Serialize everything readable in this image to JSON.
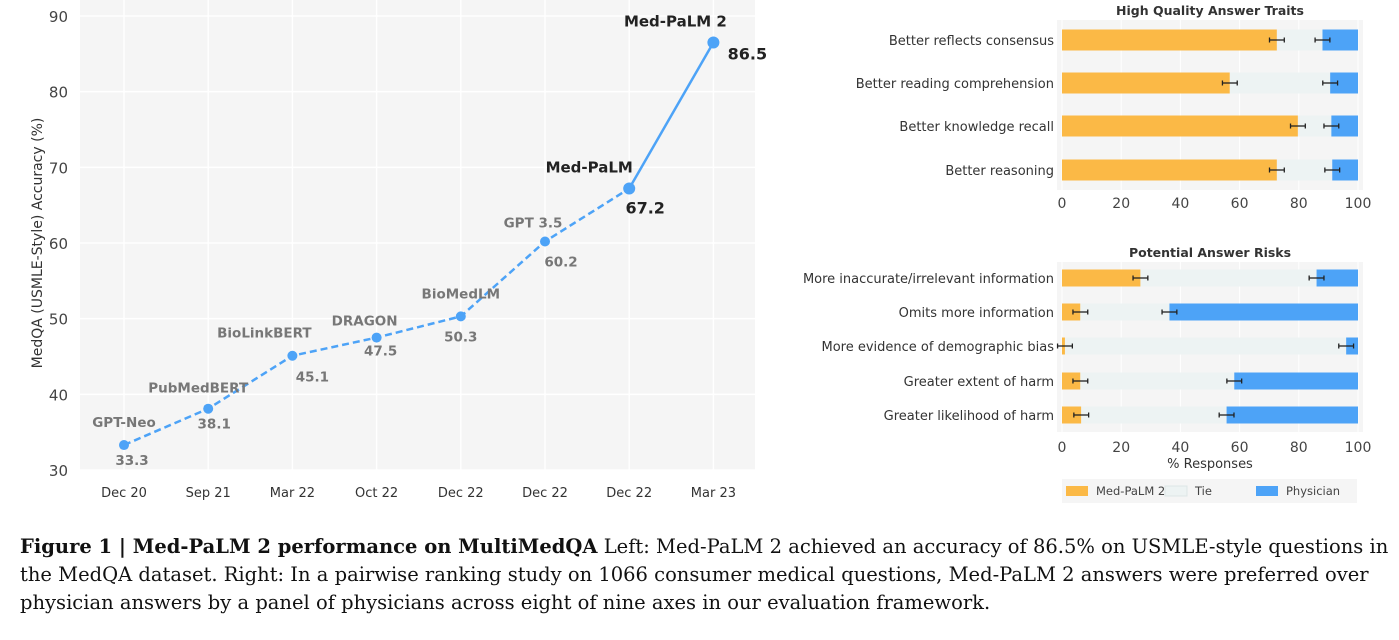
{
  "chart_data": [
    {
      "type": "line",
      "ylabel": "MedQA (USMLE-Style) Accuracy (%)",
      "ylim": [
        30,
        90
      ],
      "yticks": [
        30,
        40,
        50,
        60,
        70,
        80,
        90
      ],
      "grid": true,
      "categories": [
        "Dec 20",
        "Sep 21",
        "Mar 22",
        "Oct 22",
        "Dec 22",
        "Dec 22",
        "Dec 22",
        "Mar 23"
      ],
      "models": [
        "GPT-Neo",
        "PubMedBERT",
        "BioLinkBERT",
        "DRAGON",
        "BioMedLM",
        "GPT 3.5",
        "Med-PaLM",
        "Med-PaLM 2"
      ],
      "values": [
        33.3,
        38.1,
        45.1,
        47.5,
        50.3,
        60.2,
        67.2,
        86.5
      ],
      "value_labels": [
        "33.3",
        "38.1",
        "45.1",
        "47.5",
        "50.3",
        "60.2",
        "67.2",
        "86.5"
      ],
      "highlighted": [
        "Med-PaLM",
        "Med-PaLM 2"
      ],
      "line_color": "#4da3f7"
    },
    {
      "type": "bar",
      "orientation": "horizontal",
      "stacked": true,
      "title": "High Quality Answer Traits",
      "categories": [
        "Better reflects consensus",
        "Better reading comprehension",
        "Better knowledge recall",
        "Better reasoning"
      ],
      "series": [
        {
          "name": "Med-PaLM 2",
          "color": "#fbb946",
          "values": [
            72.6,
            56.7,
            79.7,
            72.6
          ]
        },
        {
          "name": "Tie",
          "color": "#edf3f3",
          "values": [
            15.4,
            33.9,
            11.3,
            18.7
          ]
        },
        {
          "name": "Physician",
          "color": "#4da3f7",
          "values": [
            12.0,
            9.4,
            9.0,
            8.7
          ]
        }
      ],
      "error_half_width": 2.5,
      "xlim": [
        0,
        100
      ],
      "xticks": [
        0,
        20,
        40,
        60,
        80,
        100
      ],
      "xlabel": ""
    },
    {
      "type": "bar",
      "orientation": "horizontal",
      "stacked": true,
      "title": "Potential Answer Risks",
      "categories": [
        "More inaccurate/irrelevant information",
        "Omits more information",
        "More evidence of demographic bias",
        "Greater extent of harm",
        "Greater likelihood of harm"
      ],
      "series": [
        {
          "name": "Med-PaLM 2",
          "color": "#fbb946",
          "values": [
            26.5,
            6.2,
            1.0,
            6.2,
            6.5
          ]
        },
        {
          "name": "Tie",
          "color": "#edf3f3",
          "values": [
            59.5,
            30.1,
            95.0,
            52.0,
            49.1
          ]
        },
        {
          "name": "Physician",
          "color": "#4da3f7",
          "values": [
            14.0,
            63.7,
            4.0,
            41.8,
            44.4
          ]
        }
      ],
      "error_half_width": 2.5,
      "xlim": [
        0,
        100
      ],
      "xticks": [
        0,
        20,
        40,
        60,
        80,
        100
      ],
      "xlabel": "% Responses",
      "legend": {
        "placement": "bottom",
        "entries": [
          "Med-PaLM 2",
          "Tie",
          "Physician"
        ]
      }
    }
  ],
  "caption": {
    "label": "Figure 1 | Med-PaLM 2 performance on MultiMedQA",
    "text": " Left: Med-PaLM 2 achieved an accuracy of 86.5% on USMLE-style questions in the MedQA dataset. Right: In a pairwise ranking study on 1066 consumer medical questions, Med-PaLM 2 answers were preferred over physician answers by a panel of physicians across eight of nine axes in our evaluation framework."
  }
}
